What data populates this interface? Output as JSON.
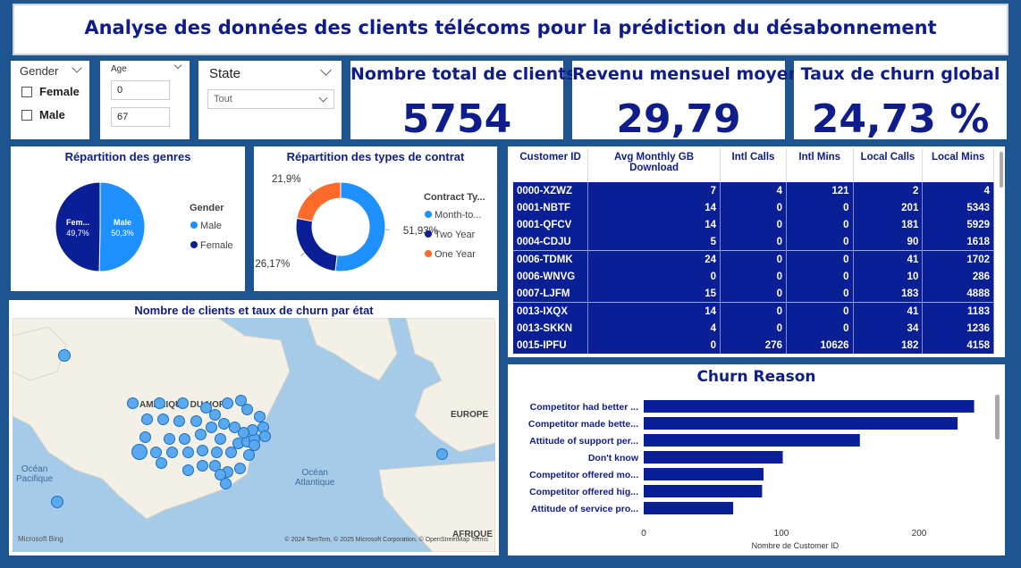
{
  "title": "Analyse des données des clients télécoms pour la prédiction du désabonnement",
  "gender_slicer": {
    "label": "Gender",
    "options": [
      "Female",
      "Male"
    ]
  },
  "age_slicer": {
    "label": "Age",
    "min": "0",
    "max": "67"
  },
  "state_slicer": {
    "label": "State",
    "value": "Tout"
  },
  "kpis": {
    "total_clients": {
      "label": "Nombre total de clients",
      "value": "5754"
    },
    "avg_revenue": {
      "label": "Revenu mensuel moyen",
      "value": "29,79"
    },
    "churn_rate": {
      "label": "Taux de churn global",
      "value": "24,73 %"
    }
  },
  "colors": {
    "navy": "#0a1e96",
    "blue": "#1e90ff",
    "orange": "#ff6a2a",
    "background": "#1e5591"
  },
  "chart_data": [
    {
      "type": "pie",
      "title": "Répartition des genres",
      "legend_title": "Gender",
      "categories": [
        "Male",
        "Female"
      ],
      "labels": [
        "Male",
        "Fem..."
      ],
      "values": [
        50.3,
        49.7
      ],
      "value_labels": [
        "50,3%",
        "49,7%"
      ]
    },
    {
      "type": "pie",
      "title": "Répartition des types de contrat",
      "legend_title": "Contract Ty...",
      "categories": [
        "Month-to...",
        "Two Year",
        "One Year"
      ],
      "values": [
        51.93,
        26.17,
        21.9
      ],
      "value_labels": [
        "51,93%",
        "26,17%",
        "21,9%"
      ]
    },
    {
      "type": "bar",
      "orientation": "horizontal",
      "title": "Churn Reason",
      "categories": [
        "Competitor had better ...",
        "Competitor made bette...",
        "Attitude of support per...",
        "Don't know",
        "Competitor offered mo...",
        "Competitor offered hig...",
        "Attitude of service pro..."
      ],
      "values": [
        240,
        228,
        157,
        101,
        87,
        86,
        65
      ],
      "xlabel": "Nombre de Customer ID",
      "xticks": [
        "0",
        "100",
        "200"
      ],
      "xlim": [
        0,
        250
      ]
    }
  ],
  "table": {
    "columns": [
      "Customer ID",
      "Avg Monthly GB Download",
      "Intl Calls",
      "Intl Mins",
      "Local Calls",
      "Local Mins"
    ],
    "rows": [
      [
        "0000-XZWZ",
        "7",
        "4",
        "121",
        "2",
        "4"
      ],
      [
        "0001-NBTF",
        "14",
        "0",
        "0",
        "201",
        "5343"
      ],
      [
        "0001-QFCV",
        "14",
        "0",
        "0",
        "181",
        "5929"
      ],
      [
        "0004-CDJU",
        "5",
        "0",
        "0",
        "90",
        "1618"
      ],
      [
        "0006-TDMK",
        "24",
        "0",
        "0",
        "41",
        "1702"
      ],
      [
        "0006-WNVG",
        "0",
        "0",
        "0",
        "10",
        "286"
      ],
      [
        "0007-LJFM",
        "15",
        "0",
        "0",
        "183",
        "4888"
      ],
      [
        "0013-IXQX",
        "14",
        "0",
        "0",
        "41",
        "1183"
      ],
      [
        "0013-SKKN",
        "4",
        "0",
        "0",
        "34",
        "1236"
      ],
      [
        "0015-IPFU",
        "0",
        "276",
        "10626",
        "182",
        "4158"
      ]
    ]
  },
  "map": {
    "title": "Nombre de clients et taux de churn par état",
    "labels": {
      "na": "AMÉRIQUE DU NORD",
      "eu": "EUROPE",
      "af": "AFRIQUE",
      "pac": "Océan\nPacifique",
      "atl": "Océan\nAtlantique"
    },
    "attribution": "© 2024 TomTom, © 2025 Microsoft Corporation, © OpenStreetMap  Terms",
    "logo": "Microsoft Bing"
  }
}
